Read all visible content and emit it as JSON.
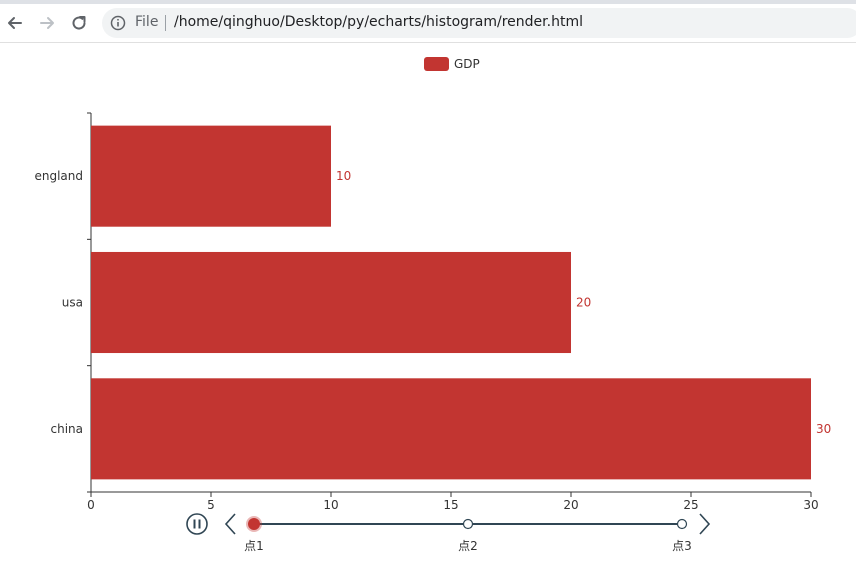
{
  "browser": {
    "url_scheme_label": "File",
    "url_path": "/home/qinghuo/Desktop/py/echarts/histogram/render.html"
  },
  "chart_data": {
    "type": "bar",
    "orientation": "horizontal",
    "legend": [
      "GDP"
    ],
    "legend_position": "top-center",
    "categories": [
      "england",
      "usa",
      "china"
    ],
    "series": [
      {
        "name": "GDP",
        "values": [
          10,
          20,
          30
        ],
        "color": "#c23531"
      }
    ],
    "xlim": [
      0,
      30
    ],
    "xticks": [
      0,
      5,
      10,
      15,
      20,
      25,
      30
    ],
    "grid": false
  },
  "timeline": {
    "points": [
      "点1",
      "点2",
      "点3"
    ],
    "current_index": 0,
    "playing": true,
    "line_color": "#304654",
    "active_color": "#c23531"
  }
}
